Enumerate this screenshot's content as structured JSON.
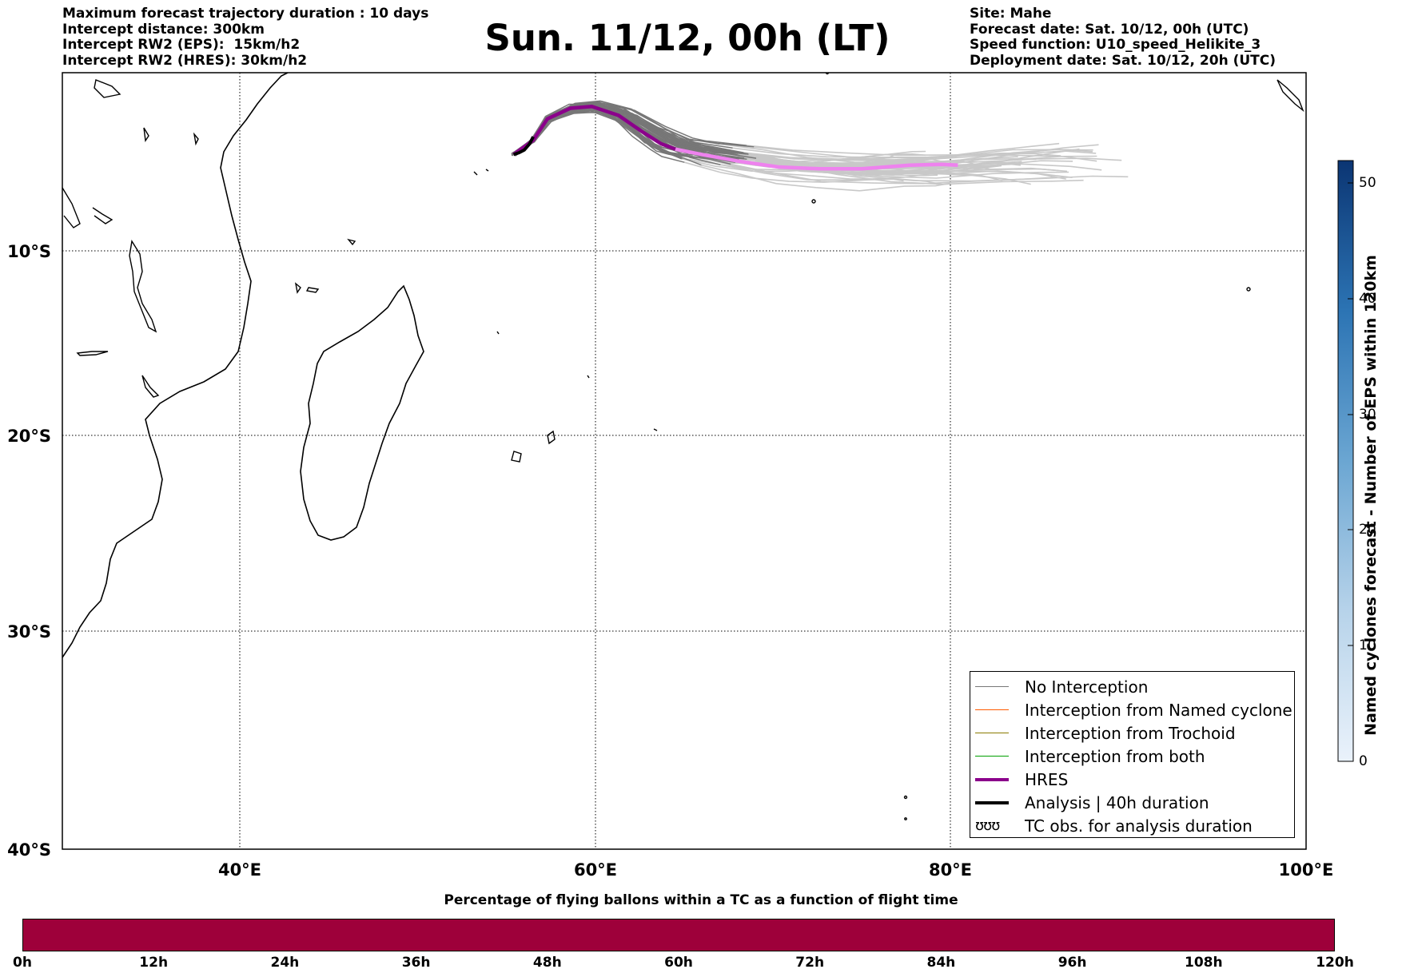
{
  "header_left": [
    "Maximum forecast trajectory duration : 10 days",
    "Intercept distance: 300km",
    "Intercept RW2 (EPS):  15km/h2",
    "Intercept RW2 (HRES): 30km/h2"
  ],
  "header_right": [
    "Site: Mahe",
    "Forecast date: Sat. 10/12, 00h (UTC)",
    "Speed function: U10_speed_Helikite_3",
    "Deployment date: Sat. 10/12, 20h (UTC)"
  ],
  "title": "Sun. 11/12, 00h (LT)",
  "map": {
    "lon_range": [
      30,
      100
    ],
    "lat_range": [
      -40,
      0
    ],
    "lon_ticks": [
      "40°E",
      "60°E",
      "80°E",
      "100°E"
    ],
    "lat_ticks": [
      "10°S",
      "20°S",
      "30°S",
      "40°S"
    ],
    "grid": "dotted",
    "colors": {
      "no_interception": "#777777",
      "no_interception_late": "#c8c8c8",
      "named_cyclone": "#ff5a00",
      "trochoid": "#8b7a00",
      "both": "#00a000",
      "hres": "#8b008b",
      "hres_later": "#ee82ee",
      "analysis": "#000000"
    },
    "hres_track": [
      [
        55.4,
        -4.6
      ],
      [
        56.5,
        -3.8
      ],
      [
        57.3,
        -2.6
      ],
      [
        58.6,
        -2.0
      ],
      [
        59.8,
        -1.9
      ],
      [
        61.3,
        -2.4
      ],
      [
        62.6,
        -3.3
      ],
      [
        63.7,
        -4.0
      ],
      [
        64.5,
        -4.3
      ],
      [
        66.0,
        -4.6
      ],
      [
        68.2,
        -5.0
      ],
      [
        70.3,
        -5.3
      ],
      [
        72.6,
        -5.4
      ],
      [
        75.0,
        -5.4
      ],
      [
        77.7,
        -5.2
      ],
      [
        79.5,
        -5.15
      ],
      [
        80.4,
        -5.2
      ]
    ],
    "analysis_track": [
      [
        55.4,
        -4.6
      ],
      [
        55.7,
        -4.5
      ],
      [
        56.0,
        -4.35
      ],
      [
        56.3,
        -4.0
      ],
      [
        56.5,
        -3.6
      ]
    ],
    "cyclone_obs_label": "TC obs. for analysis duration"
  },
  "legend": [
    {
      "label": "No Interception",
      "color": "#777777",
      "width": 1.5,
      "kind": "line"
    },
    {
      "label": "Interception from Named cyclone",
      "color": "#ff5a00",
      "width": 1.5,
      "kind": "line"
    },
    {
      "label": "Interception from Trochoid",
      "color": "#8b7a00",
      "width": 1.5,
      "kind": "line"
    },
    {
      "label": "Interception from both",
      "color": "#00a000",
      "width": 1.5,
      "kind": "line"
    },
    {
      "label": "HRES",
      "color": "#8b008b",
      "width": 4,
      "kind": "line"
    },
    {
      "label": "Analysis | 40h duration",
      "color": "#000000",
      "width": 4,
      "kind": "line"
    },
    {
      "label": "TC obs. for analysis duration",
      "glyph": "ʊʊʊ",
      "kind": "glyph"
    }
  ],
  "colorbar": {
    "label": "Named cyclones forecast - Number of EPS within 120km",
    "ticks": [
      "0",
      "10",
      "20",
      "30",
      "40",
      "50"
    ],
    "range": [
      0,
      52
    ]
  },
  "timebar": {
    "title": "Percentage of flying ballons within a TC as a function of flight time",
    "fill_color": "#9e003a",
    "ticks": [
      "0h",
      "12h",
      "24h",
      "36h",
      "48h",
      "60h",
      "72h",
      "84h",
      "96h",
      "108h",
      "120h"
    ]
  }
}
